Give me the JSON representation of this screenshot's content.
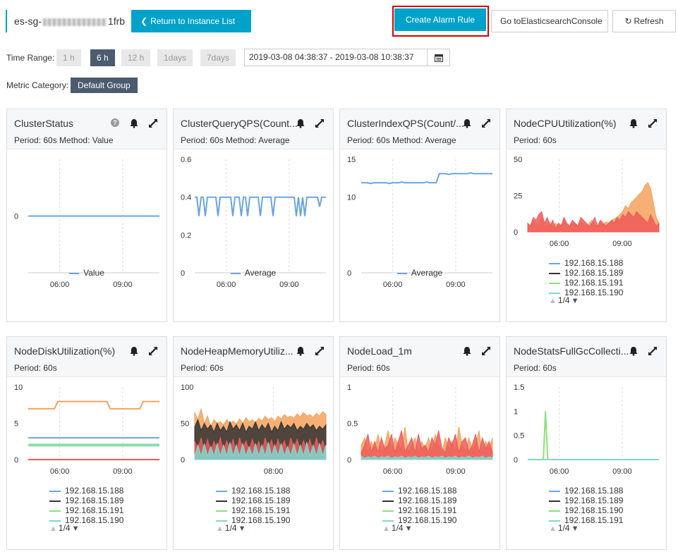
{
  "header": {
    "instance_prefix": "es-sg-",
    "instance_suffix": "1frb",
    "return_label": "Return to Instance List",
    "create_alarm_label": "Create Alarm Rule",
    "console_label": "Go toElasticsearchConsole",
    "refresh_label": "Refresh"
  },
  "time_range": {
    "label": "Time Range:",
    "options": [
      "1 h",
      "6 h",
      "12 h",
      "1days",
      "7days"
    ],
    "selected": "6 h",
    "value": "2019-03-08 04:38:37 - 2019-03-08 10:38:37"
  },
  "metric_category": {
    "label": "Metric Category:",
    "value": "Default Group"
  },
  "colors": {
    "accent": "#00a2ca",
    "blue": "#6aa6df",
    "black": "#333333",
    "green": "#8ee07a",
    "orange": "#f5a25d",
    "red": "#ef5a5a",
    "teal": "#7fd8d0",
    "alarm_box": "#d40000"
  },
  "charts": [
    {
      "title": "ClusterStatus",
      "subtitle": "Period: 60s  Method: Value",
      "help": true,
      "chart_data": {
        "type": "line",
        "x_ticks": [
          "06:00",
          "09:00"
        ],
        "y_ticks": [
          "0"
        ],
        "ylim": [
          -1,
          1
        ],
        "series": [
          {
            "name": "Value",
            "values": [
              0,
              0
            ]
          }
        ]
      },
      "legend": [
        "Value"
      ]
    },
    {
      "title": "ClusterQueryQPS(Count...",
      "subtitle": "Period: 60s  Method: Average",
      "chart_data": {
        "type": "line",
        "x_ticks": [
          "06:00",
          "09:00"
        ],
        "y_ticks": [
          "0.6",
          "0.4",
          "0.2",
          "0"
        ],
        "ylim": [
          0,
          0.6
        ],
        "series": [
          {
            "name": "Average",
            "values": [
              0.4,
              0.4,
              0.3,
              0.4,
              0.4,
              0.3,
              0.4,
              0.4,
              0.4,
              0.4,
              0.4,
              0.3,
              0.4,
              0.4,
              0.4,
              0.4,
              0.4,
              0.4,
              0.3,
              0.4,
              0.4,
              0.4,
              0.3,
              0.4,
              0.4,
              0.3,
              0.4,
              0.4,
              0.4,
              0.4,
              0.4,
              0.3,
              0.4,
              0.4,
              0.4,
              0.4,
              0.4,
              0.3,
              0.4,
              0.4,
              0.4,
              0.4,
              0.4,
              0.4,
              0.4,
              0.4,
              0.4,
              0.4,
              0.3,
              0.4,
              0.3,
              0.4,
              0.3,
              0.4,
              0.4,
              0.4,
              0.4,
              0.4,
              0.4,
              0.35,
              0.4,
              0.4,
              0.4
            ]
          }
        ]
      },
      "legend": [
        "Average"
      ]
    },
    {
      "title": "ClusterIndexQPS(Count/...",
      "subtitle": "Period: 60s  Method: Average",
      "chart_data": {
        "type": "line",
        "x_ticks": [
          "06:00",
          "09:00"
        ],
        "y_ticks": [
          "15",
          "10",
          "0"
        ],
        "ylim": [
          0,
          15
        ],
        "series": [
          {
            "name": "Average",
            "values": [
              11.9,
              11.9,
              11.9,
              11.8,
              11.9,
              11.9,
              11.9,
              11.9,
              11.9,
              11.8,
              11.9,
              11.9,
              11.9,
              12.0,
              11.9,
              11.9,
              11.9,
              11.9,
              11.9,
              11.9,
              11.9,
              12.0,
              11.9,
              11.9,
              11.9,
              13.1,
              13.1,
              13.1,
              13.0,
              13.1,
              13.1,
              13.1,
              13.1,
              13.1,
              13.1,
              13.2,
              13.1,
              13.1,
              13.1,
              13.1,
              13.1,
              13.1,
              13.1
            ]
          }
        ]
      },
      "legend": [
        "Average"
      ]
    },
    {
      "title": "NodeCPUUtilization(%)",
      "subtitle": "Period: 60s",
      "chart_data": {
        "type": "area",
        "x_ticks": [
          "06:00",
          "09:00"
        ],
        "y_ticks": [
          "50",
          "25",
          "0"
        ],
        "ylim": [
          0,
          50
        ],
        "series": [
          {
            "name": "orange",
            "values": [
              3,
              5,
              8,
              4,
              6,
              10,
              4,
              5,
              7,
              3,
              6,
              4,
              5,
              8,
              4,
              3,
              6,
              5,
              4,
              7,
              5,
              4,
              6,
              8,
              5,
              4,
              6,
              5,
              7,
              6,
              8,
              9,
              10,
              12,
              14,
              18,
              16,
              20,
              22,
              24,
              26,
              28,
              32,
              34,
              30,
              20,
              10,
              6
            ]
          },
          {
            "name": "red",
            "values": [
              6,
              4,
              10,
              8,
              12,
              14,
              6,
              10,
              4,
              8,
              2,
              6,
              4,
              10,
              6,
              4,
              8,
              6,
              4,
              10,
              8,
              6,
              4,
              6,
              10,
              4,
              8,
              6,
              4,
              6,
              8,
              6,
              10,
              8,
              12,
              10,
              14,
              12,
              10,
              14,
              12,
              10,
              8,
              6,
              12,
              8,
              4,
              6
            ]
          }
        ]
      },
      "legend": [
        "192.168.15.188",
        "192.168.15.189",
        "192.168.15.191",
        "192.168.15.190"
      ],
      "pager": "1/4"
    },
    {
      "title": "NodeDiskUtilization(%)",
      "subtitle": "Period: 60s",
      "chart_data": {
        "type": "line",
        "x_ticks": [
          "06:00",
          "09:00"
        ],
        "y_ticks": [
          "10",
          "5",
          "0"
        ],
        "ylim": [
          0,
          10
        ],
        "series": [
          {
            "name": "orange",
            "values": [
              7,
              7,
              7,
              7,
              7,
              7,
              7,
              7,
              7,
              8,
              8,
              8,
              8,
              8,
              8,
              8,
              8,
              8,
              8,
              8,
              8,
              8,
              8,
              8,
              8,
              7,
              7,
              7,
              7,
              7,
              7,
              7,
              7,
              7,
              7,
              8,
              8,
              8,
              8,
              8,
              8
            ]
          },
          {
            "name": "blue",
            "values": [
              3,
              3
            ]
          },
          {
            "name": "green",
            "values": [
              2.1,
              2.1
            ]
          },
          {
            "name": "teal",
            "values": [
              1.9,
              1.9
            ]
          },
          {
            "name": "red",
            "values": [
              0,
              0
            ]
          }
        ]
      },
      "legend": [
        "192.168.15.188",
        "192.168.15.189",
        "192.168.15.191",
        "192.168.15.190"
      ],
      "pager": "1/4"
    },
    {
      "title": "NodeHeapMemoryUtiliz...",
      "subtitle": "Period: 60s",
      "chart_data": {
        "type": "area",
        "x_ticks": [
          "08:00"
        ],
        "y_ticks": [
          "100",
          "50",
          "0"
        ],
        "ylim": [
          0,
          100
        ],
        "series": [
          {
            "name": "orange",
            "values": [
              65,
              55,
              70,
              50,
              60,
              45,
              55,
              50,
              52,
              48,
              55,
              50,
              53,
              49,
              56,
              50,
              58,
              52,
              55,
              50,
              57,
              53,
              60,
              55,
              58,
              52,
              60,
              56,
              62,
              58,
              60,
              57,
              63,
              59,
              65,
              60,
              62,
              58,
              64,
              60,
              66,
              62
            ]
          },
          {
            "name": "black",
            "values": [
              45,
              55,
              40,
              50,
              42,
              48,
              38,
              50,
              40,
              46,
              38,
              52,
              42,
              48,
              40,
              50,
              38,
              46,
              42,
              52,
              40,
              48,
              42,
              50,
              38,
              46,
              40,
              52,
              42,
              48,
              44,
              50,
              40,
              46,
              42,
              50,
              44,
              48,
              40,
              46,
              42,
              48
            ]
          },
          {
            "name": "red",
            "values": [
              25,
              15,
              30,
              10,
              28,
              12,
              25,
              15,
              30,
              12,
              26,
              14,
              28,
              10,
              30,
              15,
              26,
              12,
              28,
              14,
              25,
              10,
              30,
              15,
              27,
              12,
              28,
              14,
              26,
              10,
              30,
              15,
              28,
              12,
              26,
              14,
              28,
              10,
              30,
              15,
              26,
              12
            ]
          },
          {
            "name": "teal",
            "values": [
              5,
              20,
              5,
              22,
              5,
              18,
              5,
              22,
              5,
              20,
              5,
              24,
              5,
              20,
              5,
              22,
              5,
              18,
              5,
              22,
              5,
              20,
              5,
              24,
              5,
              20,
              5,
              22,
              5,
              18,
              5,
              22,
              5,
              20,
              5,
              24,
              5,
              20,
              5,
              22,
              5,
              20
            ]
          }
        ]
      },
      "legend": [
        "192.168.15.188",
        "192.168.15.189",
        "192.168.15.191",
        "192.168.15.190"
      ],
      "pager": "1/4"
    },
    {
      "title": "NodeLoad_1m",
      "subtitle": "Period: 60s",
      "chart_data": {
        "type": "area",
        "x_ticks": [
          "06:00",
          "09:00"
        ],
        "y_ticks": [
          "1",
          "0.5",
          "0"
        ],
        "ylim": [
          0,
          1
        ],
        "series": [
          {
            "name": "orange",
            "values": [
              0.2,
              0.3,
              0.1,
              0.25,
              0.15,
              0.35,
              0.1,
              0.2,
              0.4,
              0.1,
              0.3,
              0.2,
              0.15,
              0.45,
              0.1,
              0.2,
              0.3,
              0.1,
              0.25,
              0.15,
              0.3,
              0.1,
              0.35,
              0.2,
              0.1,
              0.3,
              0.15,
              0.25,
              0.1,
              0.45,
              0.2,
              0.1,
              0.3,
              0.15,
              0.2,
              0.4,
              0.1,
              0.25,
              0.15,
              0.3
            ]
          },
          {
            "name": "red",
            "values": [
              0.1,
              0.2,
              0.35,
              0.1,
              0.25,
              0.1,
              0.3,
              0.15,
              0.2,
              0.35,
              0.1,
              0.25,
              0.4,
              0.1,
              0.2,
              0.3,
              0.1,
              0.35,
              0.15,
              0.2,
              0.1,
              0.3,
              0.2,
              0.4,
              0.15,
              0.1,
              0.3,
              0.2,
              0.35,
              0.1,
              0.25,
              0.3,
              0.1,
              0.2,
              0.35,
              0.1,
              0.3,
              0.15,
              0.25,
              0.1
            ]
          },
          {
            "name": "teal",
            "values": [
              0.05,
              0.02,
              0.04,
              0.03,
              0.05,
              0.02,
              0.04,
              0.03,
              0.05,
              0.02,
              0.04,
              0.03,
              0.05,
              0.02,
              0.04,
              0.03,
              0.05,
              0.02,
              0.04,
              0.03,
              0.05,
              0.02,
              0.04,
              0.03,
              0.05,
              0.02,
              0.04,
              0.03,
              0.05,
              0.02,
              0.04,
              0.03,
              0.05,
              0.02,
              0.04,
              0.03,
              0.05,
              0.02,
              0.04,
              0.03
            ]
          }
        ]
      },
      "legend": [
        "192.168.15.188",
        "192.168.15.189",
        "192.168.15.191",
        "192.168.15.190"
      ],
      "pager": "1/4"
    },
    {
      "title": "NodeStatsFullGcCollecti...",
      "subtitle": "Period: 60s",
      "chart_data": {
        "type": "line",
        "x_ticks": [
          "06:00",
          "09:00"
        ],
        "y_ticks": [
          "1.5",
          "1",
          "0.5",
          "0"
        ],
        "ylim": [
          0,
          1.5
        ],
        "series": [
          {
            "name": "green",
            "values": [
              0,
              0,
              0,
              0,
              0,
              0,
              0,
              0,
              1,
              0,
              0,
              0,
              0,
              0,
              0,
              0,
              0,
              0,
              0,
              0,
              0,
              0,
              0,
              0,
              0,
              0,
              0,
              0,
              0,
              0,
              0,
              0,
              0,
              0,
              0,
              0,
              0,
              0,
              0,
              0,
              0,
              0,
              0,
              0,
              0,
              0,
              0,
              0,
              0,
              0,
              0,
              0,
              0,
              0,
              0,
              0,
              0,
              0,
              0,
              0
            ]
          },
          {
            "name": "teal",
            "values": [
              0,
              0
            ]
          }
        ]
      },
      "legend": [
        "192.168.15.188",
        "192.168.15.189",
        "192.168.15.190",
        "192.168.15.191"
      ],
      "pager": "1/4"
    }
  ]
}
